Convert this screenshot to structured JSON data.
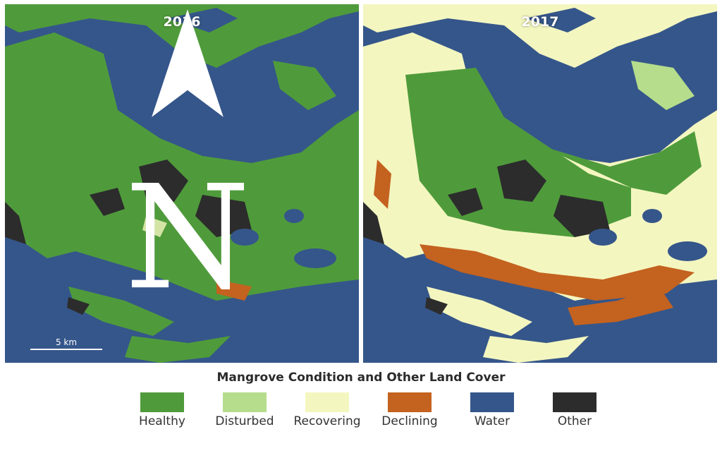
{
  "panels": {
    "left_year": "2016",
    "right_year": "2017"
  },
  "scale_label": "5 km",
  "legend": {
    "title": "Mangrove Condition and Other Land Cover",
    "items": [
      {
        "label": "Healthy",
        "color": "#4f9b3b"
      },
      {
        "label": "Disturbed",
        "color": "#b5dd8c"
      },
      {
        "label": "Recovering",
        "color": "#f4f6c0"
      },
      {
        "label": "Declining",
        "color": "#c4621f"
      },
      {
        "label": "Water",
        "color": "#35568a"
      },
      {
        "label": "Other",
        "color": "#2c2c2c"
      }
    ]
  },
  "icons": {
    "north_arrow": "north-arrow-icon"
  }
}
